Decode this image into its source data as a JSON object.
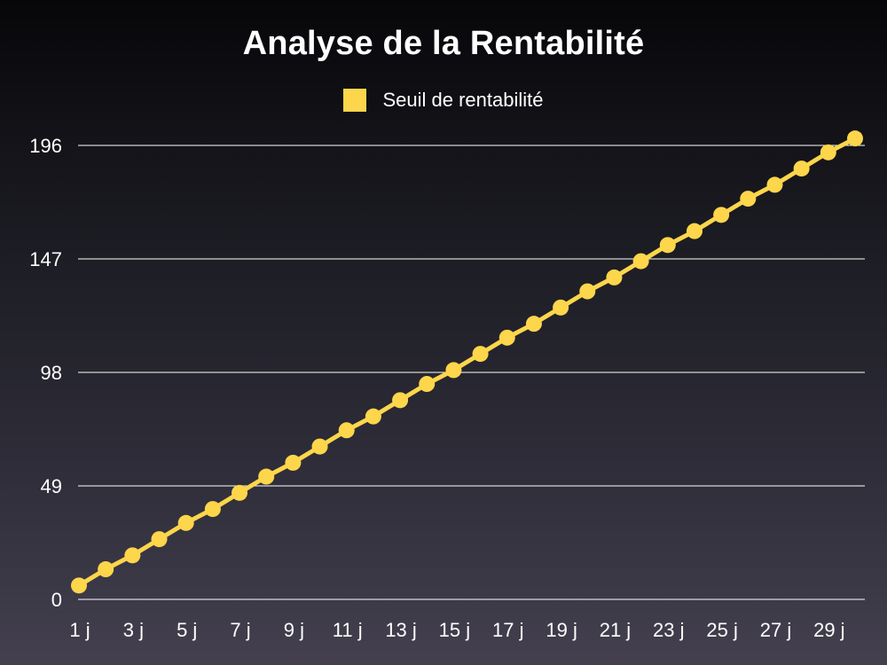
{
  "chart_data": {
    "type": "line",
    "title": "Analyse de la Rentabilité",
    "xlabel": "",
    "ylabel": "",
    "x": [
      "1 j",
      "2 j",
      "3 j",
      "4 j",
      "5 j",
      "6 j",
      "7 j",
      "8 j",
      "9 j",
      "10 j",
      "11 j",
      "12 j",
      "13 j",
      "14 j",
      "15 j",
      "16 j",
      "17 j",
      "18 j",
      "19 j",
      "20 j",
      "21 j",
      "22 j",
      "23 j",
      "24 j",
      "25 j",
      "26 j",
      "27 j",
      "28 j",
      "29 j",
      "30 j"
    ],
    "x_tick_labels": [
      "1 j",
      "3 j",
      "5 j",
      "7 j",
      "9 j",
      "11 j",
      "13 j",
      "15 j",
      "17 j",
      "19 j",
      "21 j",
      "23 j",
      "25 j",
      "27 j",
      "29 j"
    ],
    "y_ticks": [
      0,
      49,
      98,
      147,
      196
    ],
    "ylim": [
      0,
      196
    ],
    "grid": "horizontal",
    "legend_position": "top-center",
    "series": [
      {
        "name": "Seuil de rentabilité",
        "color": "#fdd64b",
        "values": [
          6,
          13,
          19,
          26,
          33,
          39,
          46,
          53,
          59,
          66,
          73,
          79,
          86,
          93,
          99,
          106,
          113,
          119,
          126,
          133,
          139,
          146,
          153,
          159,
          166,
          173,
          179,
          186,
          193,
          199
        ]
      }
    ]
  }
}
